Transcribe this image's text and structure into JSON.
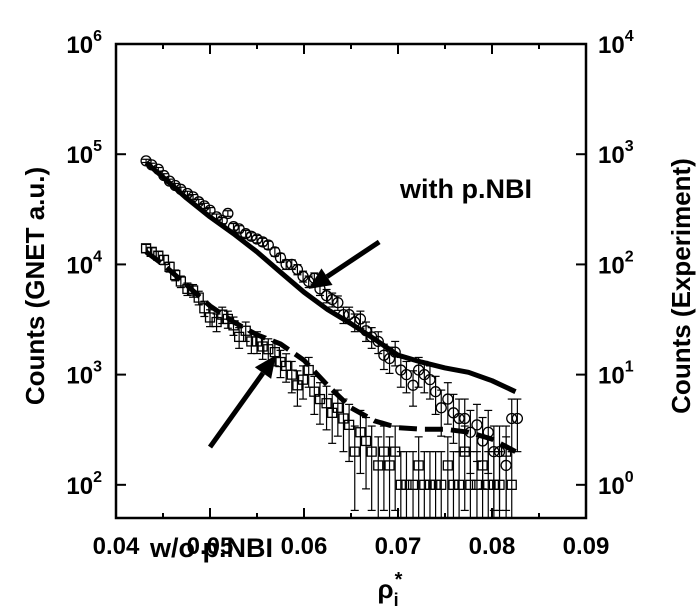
{
  "chart_data": {
    "type": "scatter",
    "title": "",
    "xlabel": "ρ",
    "xlabel_sub": "i",
    "xlabel_sup": "*",
    "ylabel_left": "Counts (GNET a.u.)",
    "ylabel_right": "Counts (Experiment)",
    "xlim": [
      0.04,
      0.09
    ],
    "ylim_left": [
      50,
      1000000
    ],
    "ylim_right": [
      0.5,
      10000
    ],
    "yscale": "log",
    "grid": false,
    "x_ticks": [
      "0.04",
      "0.05",
      "0.06",
      "0.07",
      "0.08",
      "0.09"
    ],
    "y_ticks_left": [
      {
        "value": 100,
        "base": "10",
        "exp": "2"
      },
      {
        "value": 1000,
        "base": "10",
        "exp": "3"
      },
      {
        "value": 10000,
        "base": "10",
        "exp": "4"
      },
      {
        "value": 100000,
        "base": "10",
        "exp": "5"
      },
      {
        "value": 1000000,
        "base": "10",
        "exp": "6"
      }
    ],
    "y_ticks_right": [
      {
        "value": 1,
        "base": "10",
        "exp": "0"
      },
      {
        "value": 10,
        "base": "10",
        "exp": "1"
      },
      {
        "value": 100,
        "base": "10",
        "exp": "2"
      },
      {
        "value": 1000,
        "base": "10",
        "exp": "3"
      },
      {
        "value": 10000,
        "base": "10",
        "exp": "4"
      }
    ],
    "annotations": [
      {
        "text": "with p.NBI",
        "arrow_from": [
          0.068,
          16000
        ],
        "arrow_to": [
          0.0605,
          6000
        ]
      },
      {
        "text": "w/o p.NBI",
        "arrow_from": [
          0.05,
          220
        ],
        "arrow_to": [
          0.057,
          1500
        ]
      }
    ],
    "series": [
      {
        "marker": "circle",
        "axis": "right",
        "x": [
          0.0432,
          0.0438,
          0.0445,
          0.0451,
          0.0457,
          0.0463,
          0.0469,
          0.0476,
          0.0482,
          0.0488,
          0.0494,
          0.05,
          0.0507,
          0.0513,
          0.0519,
          0.0525,
          0.0531,
          0.0538,
          0.0544,
          0.055,
          0.0556,
          0.0562,
          0.0569,
          0.0575,
          0.0581,
          0.0587,
          0.0593,
          0.0599,
          0.0605,
          0.0611,
          0.0617,
          0.0624,
          0.063,
          0.0636,
          0.0642,
          0.0648,
          0.0654,
          0.066,
          0.0666,
          0.0672,
          0.0679,
          0.0685,
          0.0691,
          0.0697,
          0.0703,
          0.0709,
          0.0716,
          0.0722,
          0.0728,
          0.0734,
          0.074,
          0.0746,
          0.0753,
          0.0759,
          0.0765,
          0.0771,
          0.0777,
          0.0784,
          0.079,
          0.0796,
          0.0802,
          0.0808,
          0.0815,
          0.0821,
          0.0827
        ],
        "y": [
          870,
          800,
          730,
          640,
          570,
          520,
          480,
          440,
          410,
          370,
          340,
          310,
          270,
          250,
          290,
          220,
          210,
          190,
          180,
          170,
          160,
          150,
          130,
          115,
          100,
          100,
          90,
          78,
          70,
          75,
          60,
          52,
          48,
          45,
          35,
          35,
          30,
          32,
          25,
          22,
          20,
          15,
          14,
          16,
          11,
          10,
          8,
          11,
          10,
          9,
          7,
          5,
          6,
          4.5,
          4,
          4,
          3,
          3.5,
          2.5,
          3,
          2,
          2,
          1.5,
          4,
          4
        ]
      },
      {
        "marker": "square",
        "axis": "right",
        "x": [
          0.0432,
          0.0438,
          0.0445,
          0.0451,
          0.0457,
          0.0463,
          0.0469,
          0.0476,
          0.0482,
          0.0488,
          0.0494,
          0.05,
          0.0507,
          0.0513,
          0.0519,
          0.0525,
          0.0531,
          0.0538,
          0.0544,
          0.055,
          0.0556,
          0.0562,
          0.0569,
          0.0575,
          0.0581,
          0.0587,
          0.0593,
          0.0599,
          0.0605,
          0.0611,
          0.0617,
          0.0624,
          0.063,
          0.0636,
          0.0642,
          0.0648,
          0.0654,
          0.066,
          0.0666,
          0.0672,
          0.0679,
          0.0685,
          0.0691,
          0.0697,
          0.0703,
          0.0709,
          0.0716,
          0.0722,
          0.0728,
          0.0734,
          0.074,
          0.0746,
          0.0753,
          0.0759,
          0.0765,
          0.0771,
          0.0777,
          0.0784,
          0.079,
          0.0796,
          0.0802,
          0.0808,
          0.0815,
          0.0821
        ],
        "y": [
          140,
          130,
          120,
          110,
          95,
          80,
          70,
          60,
          58,
          50,
          40,
          33,
          30,
          35,
          32,
          28,
          22,
          25,
          20,
          20,
          18,
          17,
          16,
          13,
          12,
          10,
          8,
          9,
          11,
          7,
          6,
          5.5,
          4.5,
          5,
          4,
          3.5,
          2,
          3,
          2.5,
          2,
          1.5,
          2,
          1.5,
          2,
          1,
          1,
          1,
          1.5,
          1,
          1,
          1,
          1,
          1.5,
          1,
          1,
          2,
          1,
          1,
          1.5,
          1,
          1,
          1,
          2,
          1
        ]
      }
    ],
    "lines": [
      {
        "style": "solid",
        "axis": "left",
        "x": [
          0.0432,
          0.045,
          0.0475,
          0.05,
          0.0525,
          0.055,
          0.0575,
          0.06,
          0.0625,
          0.065,
          0.0675,
          0.07,
          0.0725,
          0.075,
          0.0775,
          0.08,
          0.0825
        ],
        "y": [
          84000,
          62000,
          40000,
          27000,
          19000,
          13000,
          8500,
          5600,
          3900,
          2900,
          2100,
          1500,
          1300,
          1150,
          1050,
          880,
          700
        ]
      },
      {
        "style": "dashed",
        "axis": "left",
        "x": [
          0.0432,
          0.045,
          0.0475,
          0.05,
          0.0525,
          0.055,
          0.0575,
          0.06,
          0.0625,
          0.065,
          0.0675,
          0.07,
          0.0725,
          0.075,
          0.0775,
          0.08,
          0.0825
        ],
        "y": [
          13000,
          10000,
          6500,
          4200,
          3000,
          2300,
          1900,
          1350,
          800,
          500,
          380,
          330,
          320,
          320,
          300,
          260,
          200
        ]
      }
    ]
  }
}
